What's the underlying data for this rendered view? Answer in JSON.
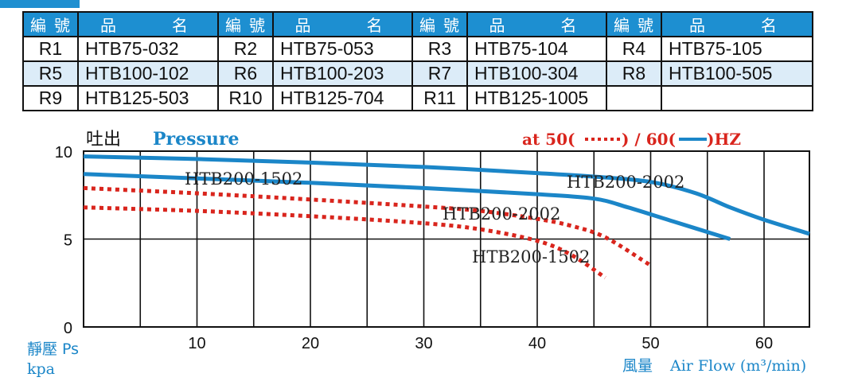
{
  "table": {
    "headers": [
      "編號",
      "品　　名",
      "編號",
      "品　　名",
      "編號",
      "品　　名",
      "編號",
      "品　　名"
    ],
    "rows": [
      [
        "R1",
        "HTB75-032",
        "R2",
        "HTB75-053",
        "R3",
        "HTB75-104",
        "R4",
        "HTB75-105"
      ],
      [
        "R5",
        "HTB100-102",
        "R6",
        "HTB100-203",
        "R7",
        "HTB100-304",
        "R8",
        "HTB100-505"
      ],
      [
        "R9",
        "HTB125-503",
        "R10",
        "HTB125-704",
        "R11",
        "HTB125-1005",
        "",
        ""
      ]
    ]
  },
  "chart_data": {
    "type": "line",
    "title_cn": "吐出",
    "title_en": "Pressure",
    "legend": {
      "prefix": "at 50(",
      "mid": ") / 60(",
      "suffix": ")HZ"
    },
    "xlabel_cn": "風量",
    "xlabel_en": "Air Flow (m³/min)",
    "ylabel_cn": "靜壓 Ps",
    "ylabel_unit": "kpa",
    "xlim": [
      0,
      64
    ],
    "ylim": [
      0,
      10
    ],
    "xticks": [
      10,
      20,
      30,
      40,
      50,
      60
    ],
    "yticks": [
      0,
      5,
      10
    ],
    "vgrid": [
      5,
      10,
      15,
      20,
      25,
      30,
      35,
      40,
      45,
      50,
      55,
      60
    ],
    "hgrid": [
      0,
      5,
      10
    ],
    "series": [
      {
        "name": "HTB200-2002",
        "frequency": "60Hz",
        "style": "solid",
        "color": "#1b86c8",
        "x": [
          0,
          10,
          20,
          30,
          40,
          45,
          50,
          54,
          57,
          60,
          64
        ],
        "y": [
          9.7,
          9.55,
          9.35,
          9.1,
          8.75,
          8.55,
          8.25,
          7.6,
          6.8,
          6.1,
          5.3
        ]
      },
      {
        "name": "HTB200-1502",
        "frequency": "60Hz",
        "style": "solid",
        "color": "#1b86c8",
        "x": [
          0,
          10,
          20,
          30,
          40,
          45,
          48,
          52,
          57
        ],
        "y": [
          8.7,
          8.45,
          8.2,
          7.9,
          7.55,
          7.3,
          6.8,
          6.0,
          5.0
        ]
      },
      {
        "name": "HTB200-2002",
        "frequency": "50Hz",
        "style": "dotted",
        "color": "#d9251d",
        "x": [
          0,
          10,
          20,
          30,
          35,
          40,
          43,
          46,
          50
        ],
        "y": [
          7.9,
          7.6,
          7.25,
          6.85,
          6.6,
          6.15,
          5.75,
          5.1,
          3.5
        ]
      },
      {
        "name": "HTB200-1502",
        "frequency": "50Hz",
        "style": "dotted",
        "color": "#d9251d",
        "x": [
          0,
          10,
          20,
          30,
          35,
          40,
          43,
          46
        ],
        "y": [
          6.8,
          6.6,
          6.3,
          5.9,
          5.55,
          4.9,
          4.1,
          2.8
        ]
      }
    ],
    "annotations": [
      "HTB200-1502",
      "HTB200-2002",
      "HTB200-2002",
      "HTB200-1502"
    ]
  }
}
